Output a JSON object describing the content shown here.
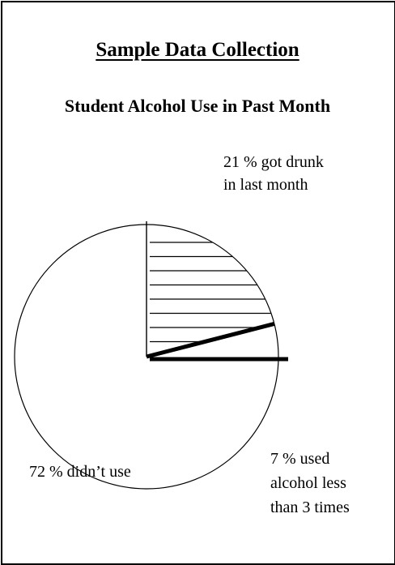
{
  "header": {
    "title": "Sample Data Collection",
    "subtitle": "Student Alcohol Use in Past Month"
  },
  "chart_data": {
    "type": "pie",
    "title": "Student Alcohol Use in Past Month",
    "slices": [
      {
        "label": "got drunk in last month",
        "value": 21,
        "fill": "hatched"
      },
      {
        "label": "used alcohol less than 3 times",
        "value": 7,
        "fill": "solid-edges"
      },
      {
        "label": "didn't use",
        "value": 72,
        "fill": "blank"
      }
    ],
    "annotations": {
      "drunk": [
        "21 % got drunk",
        "in last month"
      ],
      "none": [
        "72 % didn’t use"
      ],
      "less": [
        "7 % used",
        "alcohol less",
        "than 3 times"
      ]
    },
    "colors": {
      "line": "#000000",
      "background": "#ffffff"
    }
  }
}
